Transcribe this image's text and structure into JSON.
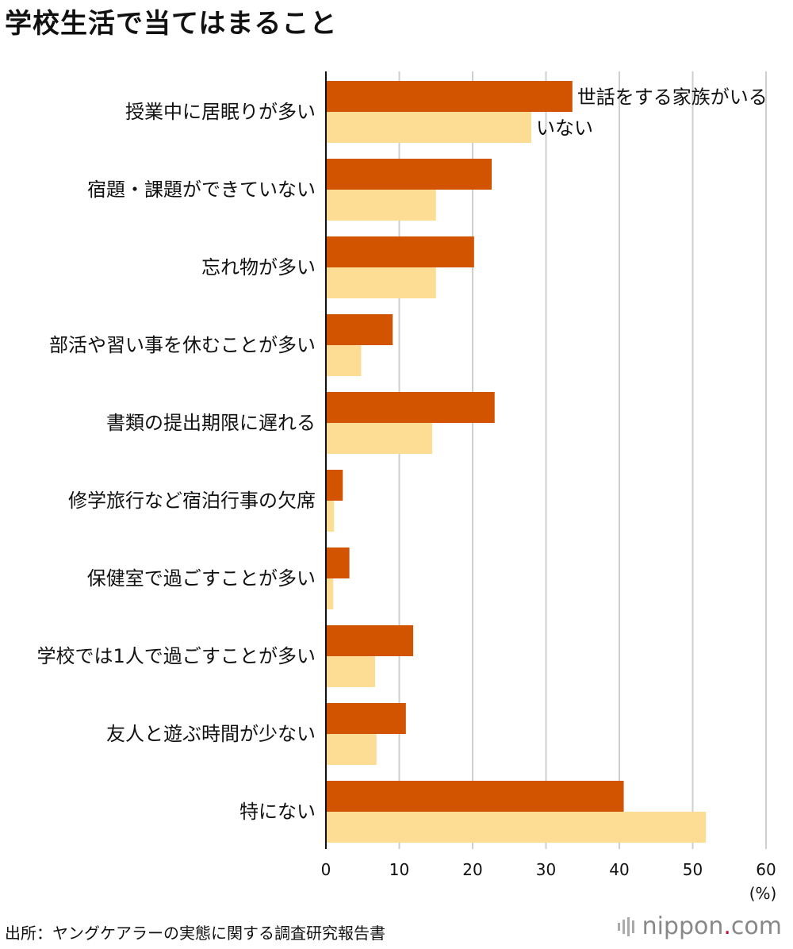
{
  "chart_data": {
    "type": "bar",
    "orientation": "horizontal",
    "title": "学校生活で当てはまること",
    "categories": [
      "授業中に居眠りが多い",
      "宿題・課題ができていない",
      "忘れ物が多い",
      "部活や習い事を休むことが多い",
      "書類の提出期限に遅れる",
      "修学旅行など宿泊行事の欠席",
      "保健室で過ごすことが多い",
      "学校では1人で過ごすことが多い",
      "友人と遊ぶ時間が少ない",
      "特にない"
    ],
    "series": [
      {
        "name": "世話をする家族がいる",
        "color": "#d35400",
        "values": [
          33.6,
          22.6,
          20.2,
          9.1,
          23.0,
          2.3,
          3.2,
          11.9,
          10.9,
          40.6
        ]
      },
      {
        "name": "いない",
        "color": "#fddc94",
        "values": [
          28.0,
          15.0,
          15.0,
          4.8,
          14.5,
          1.1,
          1.0,
          6.7,
          6.9,
          51.8
        ]
      }
    ],
    "xlim": [
      0,
      60
    ],
    "xticks": [
      0,
      10,
      20,
      30,
      40,
      50,
      60
    ],
    "xunit": "(%)",
    "grid": true
  },
  "footer": {
    "source": "出所：ヤングケアラーの実態に関する調査研究報告書",
    "logo_main": "nippon",
    "logo_dot": ".",
    "logo_tail": "com"
  }
}
